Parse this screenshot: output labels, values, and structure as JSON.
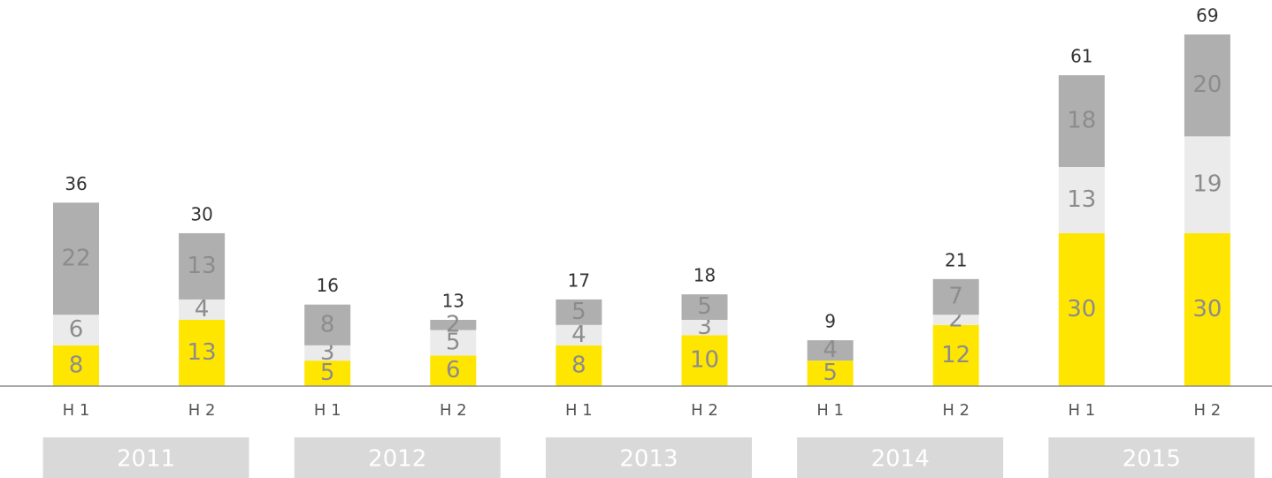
{
  "chart_data": {
    "type": "stacked_bar",
    "categories": [
      "H 1",
      "H 2",
      "H 1",
      "H 2",
      "H 1",
      "H 2",
      "H 1",
      "H 2",
      "H 1",
      "H 2"
    ],
    "groups": [
      "2011",
      "2012",
      "2013",
      "2014",
      "2015"
    ],
    "series": [
      {
        "color": "#ffe600",
        "values": [
          8,
          13,
          5,
          6,
          8,
          10,
          5,
          12,
          30,
          30
        ]
      },
      {
        "color": "#ebebeb",
        "values": [
          6,
          4,
          3,
          5,
          4,
          3,
          null,
          2,
          13,
          19
        ]
      },
      {
        "color": "#afafaf",
        "values": [
          22,
          13,
          8,
          2,
          5,
          5,
          4,
          7,
          18,
          20
        ]
      }
    ],
    "totals": [
      36,
      30,
      16,
      13,
      17,
      18,
      9,
      21,
      61,
      69
    ]
  }
}
